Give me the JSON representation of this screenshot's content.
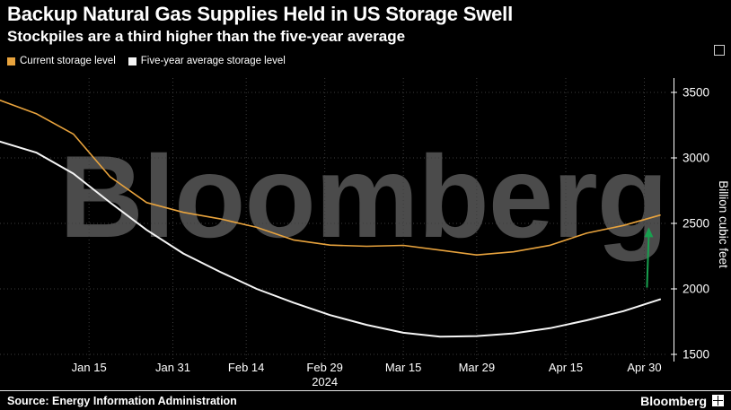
{
  "header": {
    "title": "Backup Natural Gas Supplies Held in US Storage Swell",
    "subtitle": "Stockpiles are a third higher than the five-year average"
  },
  "watermark": "Bloomberg",
  "footer": {
    "source": "Source: Energy Information Administration",
    "brand": "Bloomberg"
  },
  "colors": {
    "background": "#000000",
    "grid": "#3d3d3d",
    "axis": "#ffffff",
    "watermark": "#4b4b4b"
  },
  "chart_data": {
    "type": "line",
    "title": "Backup Natural Gas Supplies Held in US Storage Swell",
    "subtitle": "Stockpiles are a third higher than the five-year average",
    "ylabel": "Billion cubic feet",
    "ylim": [
      1500,
      3500
    ],
    "yticks": [
      1500,
      2000,
      2500,
      3000,
      3500
    ],
    "grid": "dotted",
    "legend_position": "top-left",
    "year_label": "2024",
    "x_tick_labels": [
      "Jan 15",
      "Jan 31",
      "Feb 14",
      "Feb 29",
      "Mar 15",
      "Mar 29",
      "Apr 15",
      "Apr 30"
    ],
    "x_tick_days": [
      14,
      30,
      44,
      59,
      74,
      88,
      105,
      120
    ],
    "year_tick_index": 3,
    "dates": [
      "Dec 29",
      "Jan 5",
      "Jan 12",
      "Jan 19",
      "Jan 26",
      "Feb 2",
      "Feb 9",
      "Feb 16",
      "Feb 23",
      "Mar 1",
      "Mar 8",
      "Mar 15",
      "Mar 22",
      "Mar 29",
      "Apr 5",
      "Apr 12",
      "Apr 19",
      "Apr 26",
      "May 3"
    ],
    "days": [
      -3,
      4,
      11,
      18,
      25,
      32,
      39,
      46,
      53,
      60,
      67,
      74,
      81,
      88,
      95,
      102,
      109,
      116,
      123
    ],
    "series": [
      {
        "name": "Current storage level",
        "color": "#E8A33D",
        "values": [
          3440,
          3336,
          3182,
          2856,
          2659,
          2584,
          2535,
          2470,
          2374,
          2334,
          2325,
          2332,
          2296,
          2259,
          2283,
          2333,
          2425,
          2484,
          2563
        ]
      },
      {
        "name": "Five-year average storage level",
        "color": "#F5F5F5",
        "values": [
          3125,
          3040,
          2880,
          2660,
          2450,
          2270,
          2130,
          2000,
          1895,
          1800,
          1725,
          1665,
          1635,
          1640,
          1660,
          1700,
          1760,
          1830,
          1920
        ]
      }
    ],
    "annotation_arrow": {
      "day": 120.5,
      "from": 2010,
      "to": 2470,
      "color": "#18A04F"
    }
  }
}
